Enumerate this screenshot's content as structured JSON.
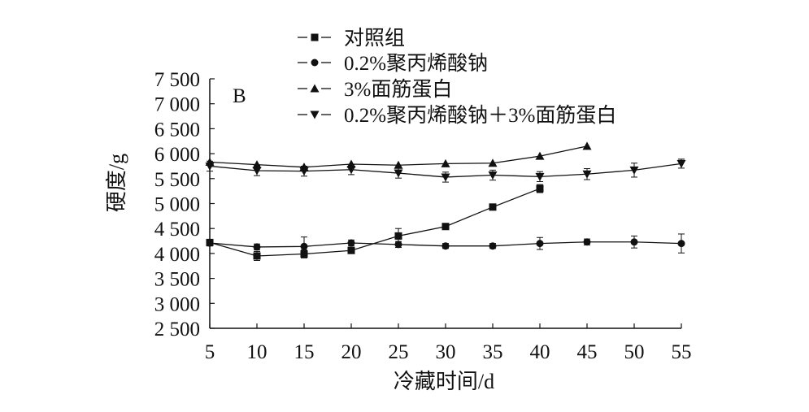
{
  "chart_data": {
    "type": "line",
    "panel_label": "B",
    "xlabel": "冷藏时间/d",
    "ylabel": "硬度/g",
    "xlim": [
      5,
      55
    ],
    "ylim": [
      2500,
      7500
    ],
    "x_ticks": [
      5,
      10,
      15,
      20,
      25,
      30,
      35,
      40,
      45,
      50,
      55
    ],
    "x_tick_labels": [
      "5",
      "10",
      "15",
      "20",
      "25",
      "30",
      "35",
      "40",
      "45",
      "50",
      "55"
    ],
    "y_ticks": [
      2500,
      3000,
      3500,
      4000,
      4500,
      5000,
      5500,
      6000,
      6500,
      7000,
      7500
    ],
    "y_tick_labels": [
      "2 500",
      "3 000",
      "3 500",
      "4 000",
      "4 500",
      "5 000",
      "5 500",
      "6 000",
      "6 500",
      "7 000",
      "7 500"
    ],
    "legend_position": "top",
    "series": [
      {
        "name": "对照组",
        "marker": "square",
        "x": [
          5,
          10,
          15,
          20,
          25,
          30,
          35,
          40
        ],
        "y": [
          4220,
          3950,
          3990,
          4060,
          4350,
          4540,
          4930,
          5300
        ],
        "error": [
          50,
          90,
          80,
          50,
          150,
          40,
          50,
          80
        ]
      },
      {
        "name": "0.2%聚丙烯酸钠",
        "marker": "circle",
        "x": [
          5,
          10,
          15,
          20,
          25,
          30,
          35,
          40,
          45,
          50,
          55
        ],
        "y": [
          4210,
          4130,
          4140,
          4210,
          4180,
          4150,
          4150,
          4200,
          4230,
          4230,
          4200
        ],
        "error": [
          60,
          60,
          190,
          60,
          60,
          50,
          50,
          120,
          60,
          120,
          190
        ]
      },
      {
        "name": "3%面筋蛋白",
        "marker": "triangle-up",
        "x": [
          5,
          10,
          15,
          20,
          25,
          30,
          35,
          40,
          45
        ],
        "y": [
          5830,
          5780,
          5730,
          5790,
          5770,
          5800,
          5810,
          5950,
          6150
        ]
      },
      {
        "name": "0.2%聚丙烯酸钠＋3%面筋蛋白",
        "marker": "triangle-down",
        "x": [
          5,
          10,
          15,
          20,
          25,
          30,
          35,
          40,
          45,
          50,
          55
        ],
        "y": [
          5750,
          5660,
          5650,
          5680,
          5610,
          5530,
          5570,
          5540,
          5590,
          5670,
          5800
        ],
        "error": [
          100,
          100,
          100,
          100,
          100,
          100,
          100,
          100,
          110,
          140,
          90
        ]
      }
    ]
  }
}
